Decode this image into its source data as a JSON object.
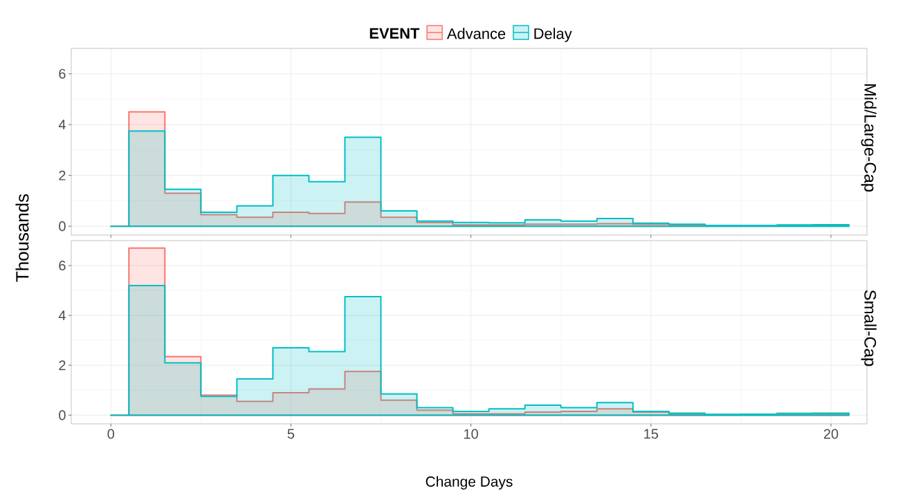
{
  "chart_data": [
    {
      "type": "histogram",
      "title": "Mid/Large-Cap",
      "legend_title": "EVENT",
      "legend": "top",
      "grid": true,
      "tick_labels": "y",
      "bins": [
        0,
        0.5,
        1.5,
        2.5,
        3.5,
        4.5,
        5.5,
        6.5,
        7.5,
        8.5,
        9.5,
        10.5,
        11.5,
        12.5,
        13.5,
        14.5,
        15.5,
        16.5,
        17.5,
        18.5,
        19.5,
        20.5
      ],
      "xlim": [
        -1.1,
        21
      ],
      "ylim": [
        -0.35,
        7
      ],
      "xticks": [
        0,
        5,
        10,
        15,
        20
      ],
      "yticks": [
        0,
        2,
        4,
        6
      ],
      "series": [
        {
          "name": "Advance",
          "color": "#f8766d",
          "values": [
            0,
            4.5,
            1.3,
            0.45,
            0.35,
            0.55,
            0.5,
            0.95,
            0.35,
            0.15,
            0.05,
            0.05,
            0.08,
            0.08,
            0.1,
            0.08,
            0.05,
            0.02,
            0.02,
            0.03,
            0.03
          ]
        },
        {
          "name": "Delay",
          "color": "#00bfc4",
          "values": [
            0,
            3.75,
            1.45,
            0.55,
            0.8,
            2.0,
            1.75,
            3.5,
            0.6,
            0.2,
            0.15,
            0.13,
            0.25,
            0.2,
            0.3,
            0.12,
            0.08,
            0.03,
            0.03,
            0.05,
            0.06
          ]
        }
      ]
    },
    {
      "type": "histogram",
      "title": "Small-Cap",
      "xlabel": "Change Days",
      "ylabel": "Thousands",
      "grid": true,
      "bins": [
        0,
        0.5,
        1.5,
        2.5,
        3.5,
        4.5,
        5.5,
        6.5,
        7.5,
        8.5,
        9.5,
        10.5,
        11.5,
        12.5,
        13.5,
        14.5,
        15.5,
        16.5,
        17.5,
        18.5,
        19.5,
        20.5
      ],
      "xlim": [
        -1.1,
        21
      ],
      "ylim": [
        -0.35,
        7
      ],
      "xticks": [
        0,
        5,
        10,
        15,
        20
      ],
      "yticks": [
        0,
        2,
        4,
        6
      ],
      "series": [
        {
          "color": "#f8766d",
          "values": [
            0,
            6.7,
            2.35,
            0.8,
            0.55,
            0.9,
            1.05,
            1.75,
            0.6,
            0.2,
            0.05,
            0.05,
            0.12,
            0.15,
            0.25,
            0.12,
            0.05,
            0.02,
            0.03,
            0.03,
            0.05
          ]
        },
        {
          "color": "#00bfc4",
          "values": [
            0,
            5.2,
            2.1,
            0.75,
            1.45,
            2.7,
            2.55,
            4.75,
            0.85,
            0.3,
            0.15,
            0.25,
            0.4,
            0.3,
            0.5,
            0.15,
            0.08,
            0.03,
            0.04,
            0.07,
            0.08
          ]
        }
      ]
    }
  ]
}
